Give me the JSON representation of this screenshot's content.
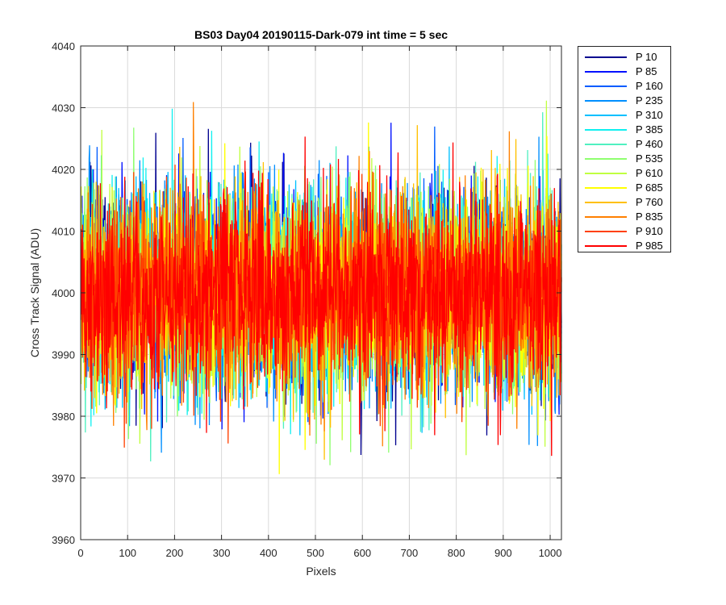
{
  "chart_data": {
    "type": "line",
    "title": "BS03 Day04 20190115-Dark-079 int time = 5 sec",
    "xlabel": "Pixels",
    "ylabel": "Cross Track Signal (ADU)",
    "xlim": [
      0,
      1024
    ],
    "ylim": [
      3960,
      4040
    ],
    "xticks": [
      0,
      100,
      200,
      300,
      400,
      500,
      600,
      700,
      800,
      900,
      1000
    ],
    "yticks": [
      3960,
      3970,
      3980,
      3990,
      4000,
      4010,
      4020,
      4030,
      4040
    ],
    "grid": true,
    "legend_position": "outside-right",
    "mean_signal": 4000,
    "noise_sigma": 8,
    "series": [
      {
        "name": "P 10",
        "color": "#00008F"
      },
      {
        "name": "P 85",
        "color": "#0010FF"
      },
      {
        "name": "P 160",
        "color": "#005CFF"
      },
      {
        "name": "P 235",
        "color": "#008FFF"
      },
      {
        "name": "P 310",
        "color": "#00C0FF"
      },
      {
        "name": "P 385",
        "color": "#10F0F0"
      },
      {
        "name": "P 460",
        "color": "#50F0C0"
      },
      {
        "name": "P 535",
        "color": "#8FFF70"
      },
      {
        "name": "P 610",
        "color": "#C0FF40"
      },
      {
        "name": "P 685",
        "color": "#FFFF00"
      },
      {
        "name": "P 760",
        "color": "#FFC000"
      },
      {
        "name": "P 835",
        "color": "#FF8000"
      },
      {
        "name": "P 910",
        "color": "#FF4000"
      },
      {
        "name": "P 985",
        "color": "#FF0000"
      }
    ]
  }
}
